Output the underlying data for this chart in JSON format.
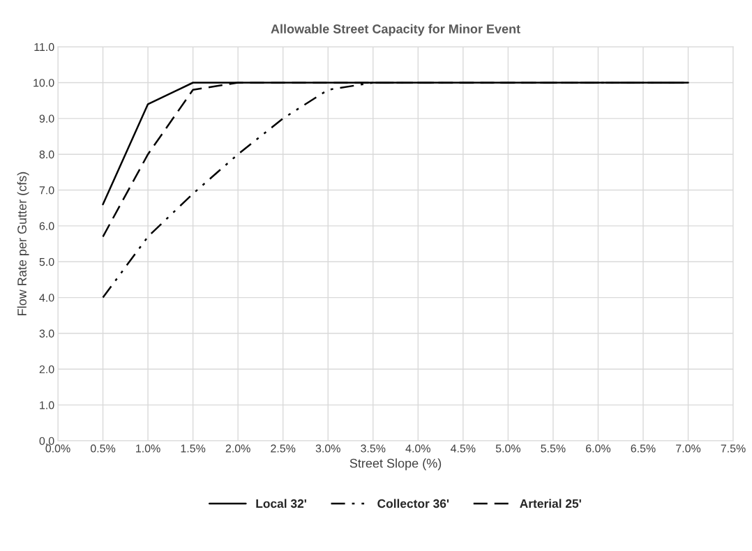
{
  "chart_data": {
    "type": "line",
    "title": "Allowable Street Capacity for Minor Event",
    "xlabel": "Street Slope (%)",
    "ylabel": "Flow Rate per Gutter (cfs)",
    "x": [
      0.5,
      1.0,
      1.5,
      2.0,
      2.5,
      3.0,
      3.5,
      4.0,
      4.5,
      5.0,
      5.5,
      6.0,
      6.5,
      7.0
    ],
    "series": [
      {
        "name": "Local 32'",
        "color": "#000000",
        "line_style": "solid",
        "values": [
          6.6,
          9.4,
          10.0,
          10.0,
          10.0,
          10.0,
          10.0,
          10.0,
          10.0,
          10.0,
          10.0,
          10.0,
          10.0,
          10.0
        ]
      },
      {
        "name": "Collector 36'",
        "color": "#000000",
        "line_style": "dashdotdot",
        "values": [
          4.0,
          5.7,
          6.9,
          8.0,
          9.0,
          9.8,
          10.0,
          10.0,
          10.0,
          10.0,
          10.0,
          10.0,
          10.0,
          10.0
        ]
      },
      {
        "name": "Arterial 25'",
        "color": "#000000",
        "line_style": "dashed",
        "values": [
          5.7,
          8.0,
          9.8,
          10.0,
          10.0,
          10.0,
          10.0,
          10.0,
          10.0,
          10.0,
          10.0,
          10.0,
          10.0,
          10.0
        ]
      }
    ],
    "xlim": [
      0,
      7.5
    ],
    "xticks": [
      {
        "value": 0,
        "label": "0.0%"
      },
      {
        "value": 0.5,
        "label": "0.5%"
      },
      {
        "value": 1.0,
        "label": "1.0%"
      },
      {
        "value": 1.5,
        "label": "1.5%"
      },
      {
        "value": 2.0,
        "label": "2.0%"
      },
      {
        "value": 2.5,
        "label": "2.5%"
      },
      {
        "value": 3.0,
        "label": "3.0%"
      },
      {
        "value": 3.5,
        "label": "3.5%"
      },
      {
        "value": 4.0,
        "label": "4.0%"
      },
      {
        "value": 4.5,
        "label": "4.5%"
      },
      {
        "value": 5.0,
        "label": "5.0%"
      },
      {
        "value": 5.5,
        "label": "5.5%"
      },
      {
        "value": 6.0,
        "label": "6.0%"
      },
      {
        "value": 6.5,
        "label": "6.5%"
      },
      {
        "value": 7.0,
        "label": "7.0%"
      },
      {
        "value": 7.5,
        "label": "7.5%"
      }
    ],
    "ylim": [
      0,
      11
    ],
    "yticks": [
      {
        "value": 0,
        "label": "0.0"
      },
      {
        "value": 1,
        "label": "1.0"
      },
      {
        "value": 2,
        "label": "2.0"
      },
      {
        "value": 3,
        "label": "3.0"
      },
      {
        "value": 4,
        "label": "4.0"
      },
      {
        "value": 5,
        "label": "5.0"
      },
      {
        "value": 6,
        "label": "6.0"
      },
      {
        "value": 7,
        "label": "7.0"
      },
      {
        "value": 8,
        "label": "8.0"
      },
      {
        "value": 9,
        "label": "9.0"
      },
      {
        "value": 10,
        "label": "10.0"
      },
      {
        "value": 11,
        "label": "11.0"
      }
    ],
    "grid": true,
    "legend": "bottom",
    "marker": "none"
  }
}
